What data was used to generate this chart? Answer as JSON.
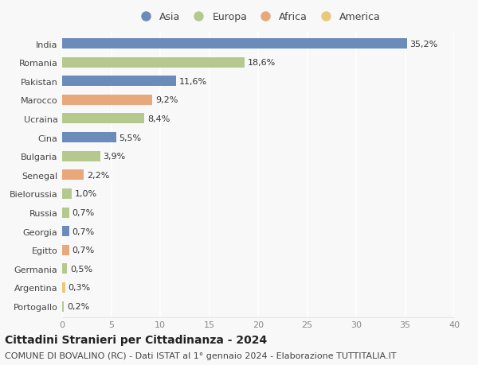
{
  "categories": [
    "India",
    "Romania",
    "Pakistan",
    "Marocco",
    "Ucraina",
    "Cina",
    "Bulgaria",
    "Senegal",
    "Bielorussia",
    "Russia",
    "Georgia",
    "Egitto",
    "Germania",
    "Argentina",
    "Portogallo"
  ],
  "values": [
    35.2,
    18.6,
    11.6,
    9.2,
    8.4,
    5.5,
    3.9,
    2.2,
    1.0,
    0.7,
    0.7,
    0.7,
    0.5,
    0.3,
    0.2
  ],
  "labels": [
    "35,2%",
    "18,6%",
    "11,6%",
    "9,2%",
    "8,4%",
    "5,5%",
    "3,9%",
    "2,2%",
    "1,0%",
    "0,7%",
    "0,7%",
    "0,7%",
    "0,5%",
    "0,3%",
    "0,2%"
  ],
  "colors": [
    "#6b8cba",
    "#b5c98e",
    "#6b8cba",
    "#e8a87c",
    "#b5c98e",
    "#6b8cba",
    "#b5c98e",
    "#e8a87c",
    "#b5c98e",
    "#b5c98e",
    "#6b8cba",
    "#e8a87c",
    "#b5c98e",
    "#e8c97c",
    "#b5c98e"
  ],
  "continent": [
    "Asia",
    "Europa",
    "Asia",
    "Africa",
    "Europa",
    "Asia",
    "Europa",
    "Africa",
    "Europa",
    "Europa",
    "Asia",
    "Africa",
    "Europa",
    "America",
    "Europa"
  ],
  "legend_labels": [
    "Asia",
    "Europa",
    "Africa",
    "America"
  ],
  "legend_colors": [
    "#6b8cba",
    "#b5c98e",
    "#e8a87c",
    "#e8c97c"
  ],
  "title": "Cittadini Stranieri per Cittadinanza - 2024",
  "subtitle": "COMUNE DI BOVALINO (RC) - Dati ISTAT al 1° gennaio 2024 - Elaborazione TUTTITALIA.IT",
  "xlim": [
    0,
    40
  ],
  "xticks": [
    0,
    5,
    10,
    15,
    20,
    25,
    30,
    35,
    40
  ],
  "background_color": "#f8f8f8",
  "grid_color": "#ffffff",
  "bar_height": 0.55,
  "title_fontsize": 10,
  "subtitle_fontsize": 8,
  "tick_fontsize": 8,
  "label_fontsize": 8,
  "legend_fontsize": 9
}
